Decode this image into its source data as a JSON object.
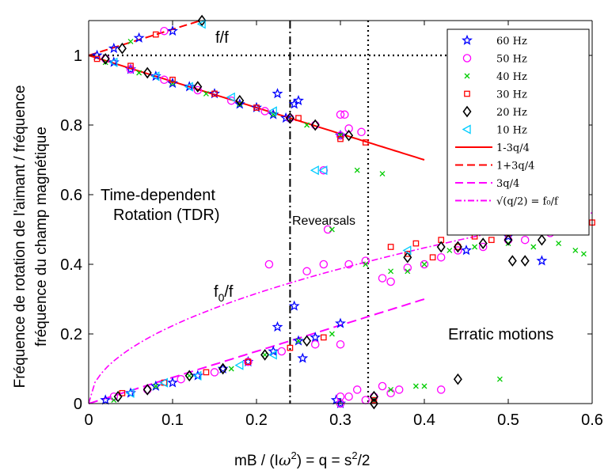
{
  "chart_data": {
    "type": "scatter",
    "xlabel": "mB / (Iω²)    = q = s²/2",
    "ylabel_line1": "Fréquence de rotation de l'aimant / fréquence",
    "ylabel_line2": "fréquence du champ magnétique",
    "xlim": [
      0,
      0.6
    ],
    "ylim": [
      0,
      1.1
    ],
    "xticks": [
      0,
      0.1,
      0.2,
      0.3,
      0.4,
      0.5,
      0.6
    ],
    "xtick_labels": [
      "0",
      "0.1",
      "0.2",
      "0.3",
      "0.4",
      "0.5",
      "0.6"
    ],
    "yticks": [
      0,
      0.2,
      0.4,
      0.6,
      0.8,
      1
    ],
    "ytick_labels": [
      "0",
      "0.2",
      "0.4",
      "0.6",
      "0.8",
      "1"
    ],
    "grid": false,
    "legend_position": "top-right",
    "annotations": {
      "ff": "f/f",
      "tdr1": "Time-dependent",
      "tdr2": "Rotation (TDR)",
      "reversals": "Revearsals",
      "f0f": "f",
      "f0f_sub": "0",
      "f0f_tail": "/f",
      "erratic": "Erratic motions"
    },
    "vlines": [
      0.24,
      0.333
    ],
    "hline": 1.0,
    "series": [
      {
        "name": "60 Hz",
        "marker": "star",
        "color": "#0000ff",
        "points": [
          [
            0.01,
            1.0
          ],
          [
            0.03,
            0.98
          ],
          [
            0.05,
            0.96
          ],
          [
            0.08,
            0.94
          ],
          [
            0.1,
            0.92
          ],
          [
            0.12,
            0.91
          ],
          [
            0.15,
            0.89
          ],
          [
            0.18,
            0.86
          ],
          [
            0.2,
            0.85
          ],
          [
            0.22,
            0.83
          ],
          [
            0.225,
            0.89
          ],
          [
            0.235,
            0.82
          ],
          [
            0.245,
            0.86
          ],
          [
            0.25,
            0.87
          ],
          [
            0.3,
            0.77
          ],
          [
            0.03,
            1.02
          ],
          [
            0.06,
            1.05
          ],
          [
            0.1,
            1.07
          ],
          [
            0.02,
            0.01
          ],
          [
            0.05,
            0.03
          ],
          [
            0.08,
            0.05
          ],
          [
            0.1,
            0.06
          ],
          [
            0.13,
            0.08
          ],
          [
            0.16,
            0.1
          ],
          [
            0.19,
            0.12
          ],
          [
            0.22,
            0.15
          ],
          [
            0.25,
            0.18
          ],
          [
            0.27,
            0.19
          ],
          [
            0.3,
            0.23
          ],
          [
            0.225,
            0.22
          ],
          [
            0.245,
            0.28
          ],
          [
            0.255,
            0.13
          ],
          [
            0.295,
            0.01
          ],
          [
            0.3,
            0.0
          ],
          [
            0.54,
            0.41
          ],
          [
            0.45,
            0.44
          ],
          [
            0.5,
            0.48
          ]
        ]
      },
      {
        "name": "50 Hz",
        "marker": "circle",
        "color": "#ff00ff",
        "points": [
          [
            0.02,
            0.99
          ],
          [
            0.05,
            0.96
          ],
          [
            0.09,
            0.93
          ],
          [
            0.13,
            0.9
          ],
          [
            0.17,
            0.87
          ],
          [
            0.21,
            0.84
          ],
          [
            0.24,
            0.82
          ],
          [
            0.27,
            0.8
          ],
          [
            0.3,
            0.77
          ],
          [
            0.31,
            0.79
          ],
          [
            0.325,
            0.78
          ],
          [
            0.3,
            0.83
          ],
          [
            0.305,
            0.83
          ],
          [
            0.28,
            0.67
          ],
          [
            0.285,
            0.5
          ],
          [
            0.215,
            0.4
          ],
          [
            0.26,
            0.38
          ],
          [
            0.28,
            0.4
          ],
          [
            0.31,
            0.4
          ],
          [
            0.33,
            0.41
          ],
          [
            0.35,
            0.36
          ],
          [
            0.36,
            0.35
          ],
          [
            0.38,
            0.39
          ],
          [
            0.4,
            0.4
          ],
          [
            0.42,
            0.42
          ],
          [
            0.44,
            0.44
          ],
          [
            0.47,
            0.45
          ],
          [
            0.5,
            0.47
          ],
          [
            0.52,
            0.47
          ],
          [
            0.55,
            0.49
          ],
          [
            0.58,
            0.51
          ],
          [
            0.03,
            0.02
          ],
          [
            0.07,
            0.04
          ],
          [
            0.11,
            0.07
          ],
          [
            0.15,
            0.09
          ],
          [
            0.19,
            0.12
          ],
          [
            0.23,
            0.15
          ],
          [
            0.27,
            0.17
          ],
          [
            0.3,
            0.17
          ],
          [
            0.3,
            0.02
          ],
          [
            0.32,
            0.04
          ],
          [
            0.34,
            0.02
          ],
          [
            0.35,
            0.05
          ],
          [
            0.36,
            0.03
          ],
          [
            0.37,
            0.04
          ],
          [
            0.42,
            0.04
          ],
          [
            0.09,
            1.07
          ],
          [
            0.3,
            0.0
          ],
          [
            0.33,
            0.01
          ],
          [
            0.31,
            0.02
          ]
        ]
      },
      {
        "name": "40 Hz",
        "marker": "x",
        "color": "#00cc00",
        "points": [
          [
            0.02,
            0.98
          ],
          [
            0.06,
            0.95
          ],
          [
            0.1,
            0.92
          ],
          [
            0.14,
            0.89
          ],
          [
            0.18,
            0.86
          ],
          [
            0.22,
            0.83
          ],
          [
            0.26,
            0.8
          ],
          [
            0.3,
            0.77
          ],
          [
            0.35,
            0.66
          ],
          [
            0.32,
            0.67
          ],
          [
            0.29,
            0.5
          ],
          [
            0.33,
            0.4
          ],
          [
            0.36,
            0.38
          ],
          [
            0.38,
            0.38
          ],
          [
            0.4,
            0.4
          ],
          [
            0.43,
            0.44
          ],
          [
            0.46,
            0.45
          ],
          [
            0.5,
            0.46
          ],
          [
            0.53,
            0.45
          ],
          [
            0.56,
            0.46
          ],
          [
            0.58,
            0.44
          ],
          [
            0.59,
            0.43
          ],
          [
            0.03,
            0.01
          ],
          [
            0.08,
            0.05
          ],
          [
            0.12,
            0.08
          ],
          [
            0.17,
            0.1
          ],
          [
            0.21,
            0.14
          ],
          [
            0.25,
            0.18
          ],
          [
            0.29,
            0.2
          ],
          [
            0.36,
            0.04
          ],
          [
            0.39,
            0.05
          ],
          [
            0.4,
            0.05
          ],
          [
            0.49,
            0.07
          ],
          [
            0.34,
            0.01
          ],
          [
            0.05,
            1.04
          ]
        ]
      },
      {
        "name": "30 Hz",
        "marker": "square",
        "color": "#ff0000",
        "points": [
          [
            0.01,
            0.99
          ],
          [
            0.05,
            0.97
          ],
          [
            0.1,
            0.93
          ],
          [
            0.15,
            0.89
          ],
          [
            0.2,
            0.85
          ],
          [
            0.25,
            0.82
          ],
          [
            0.3,
            0.76
          ],
          [
            0.33,
            0.75
          ],
          [
            0.36,
            0.45
          ],
          [
            0.39,
            0.46
          ],
          [
            0.42,
            0.47
          ],
          [
            0.44,
            0.45
          ],
          [
            0.46,
            0.48
          ],
          [
            0.48,
            0.47
          ],
          [
            0.5,
            0.49
          ],
          [
            0.53,
            0.5
          ],
          [
            0.55,
            0.51
          ],
          [
            0.57,
            0.5
          ],
          [
            0.6,
            0.52
          ],
          [
            0.38,
            0.43
          ],
          [
            0.41,
            0.42
          ],
          [
            0.04,
            0.03
          ],
          [
            0.09,
            0.06
          ],
          [
            0.14,
            0.09
          ],
          [
            0.19,
            0.12
          ],
          [
            0.24,
            0.16
          ],
          [
            0.28,
            0.19
          ],
          [
            0.34,
            0.01
          ],
          [
            0.08,
            1.06
          ]
        ]
      },
      {
        "name": "20 Hz",
        "marker": "diamond",
        "color": "#000000",
        "points": [
          [
            0.02,
            0.99
          ],
          [
            0.07,
            0.95
          ],
          [
            0.13,
            0.91
          ],
          [
            0.18,
            0.87
          ],
          [
            0.24,
            0.82
          ],
          [
            0.27,
            0.8
          ],
          [
            0.31,
            0.77
          ],
          [
            0.34,
            0.0
          ],
          [
            0.34,
            0.02
          ],
          [
            0.38,
            0.42
          ],
          [
            0.42,
            0.45
          ],
          [
            0.44,
            0.45
          ],
          [
            0.47,
            0.46
          ],
          [
            0.5,
            0.47
          ],
          [
            0.52,
            0.41
          ],
          [
            0.54,
            0.47
          ],
          [
            0.57,
            0.5
          ],
          [
            0.505,
            0.41
          ],
          [
            0.44,
            0.07
          ],
          [
            0.035,
            0.02
          ],
          [
            0.07,
            0.04
          ],
          [
            0.12,
            0.08
          ],
          [
            0.16,
            0.1
          ],
          [
            0.21,
            0.14
          ],
          [
            0.26,
            0.18
          ],
          [
            0.04,
            1.02
          ],
          [
            0.135,
            1.1
          ]
        ]
      },
      {
        "name": "10 Hz",
        "marker": "triangle",
        "color": "#00ccff",
        "points": [
          [
            0.03,
            0.98
          ],
          [
            0.08,
            0.94
          ],
          [
            0.12,
            0.91
          ],
          [
            0.17,
            0.88
          ],
          [
            0.22,
            0.84
          ],
          [
            0.27,
            0.67
          ],
          [
            0.28,
            0.67
          ],
          [
            0.05,
            0.03
          ],
          [
            0.09,
            0.06
          ],
          [
            0.13,
            0.08
          ],
          [
            0.18,
            0.11
          ],
          [
            0.22,
            0.14
          ],
          [
            0.135,
            1.09
          ],
          [
            0.38,
            0.44
          ]
        ]
      }
    ],
    "curves": [
      {
        "name": "1-3q/4",
        "style": "solid",
        "color": "#ff0000"
      },
      {
        "name": "1+3q/4",
        "style": "dashed",
        "color": "#ff0000"
      },
      {
        "name": "3q/4",
        "style": "dashed",
        "color": "#ff00ff"
      },
      {
        "name": "√(q/2) = f₀/f",
        "style": "dashdot",
        "color": "#ff00ff"
      }
    ]
  }
}
